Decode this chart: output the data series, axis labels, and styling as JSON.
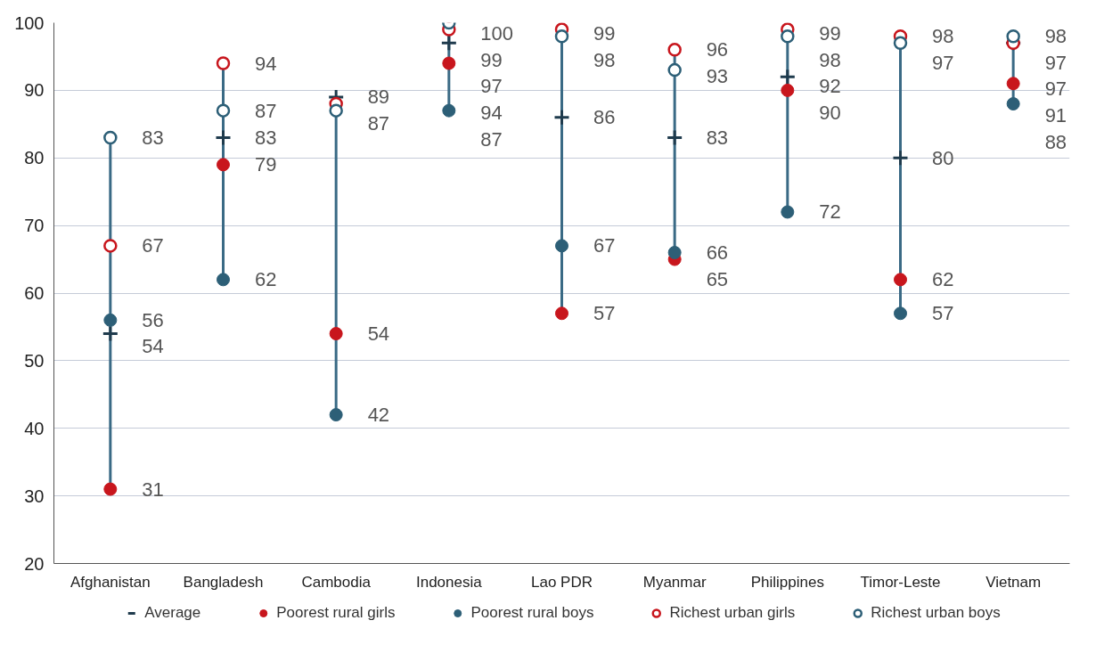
{
  "chart_data": {
    "type": "scatter",
    "categories": [
      "Afghanistan",
      "Bangladesh",
      "Cambodia",
      "Indonesia",
      "Lao PDR",
      "Myanmar",
      "Philippines",
      "Timor-Leste",
      "Vietnam"
    ],
    "ylim": [
      20,
      100
    ],
    "yticks": [
      20,
      30,
      40,
      50,
      60,
      70,
      80,
      90,
      100
    ],
    "grid": "y",
    "legend": "bottom",
    "series": [
      {
        "name": "Average",
        "color": "#1f3b4d",
        "marker": "cross",
        "values": [
          54,
          83,
          89,
          97,
          86,
          83,
          92,
          80,
          97
        ]
      },
      {
        "name": "Poorest rural girls",
        "color": "#c8161d",
        "marker": "circle",
        "values": [
          31,
          79,
          54,
          94,
          57,
          65,
          90,
          62,
          91
        ]
      },
      {
        "name": "Poorest rural boys",
        "color": "#2d5f77",
        "marker": "circle",
        "values": [
          56,
          62,
          42,
          87,
          67,
          66,
          72,
          57,
          88
        ]
      },
      {
        "name": "Richest urban girls",
        "color": "#c8161d",
        "marker": "circle_open",
        "values": [
          67,
          94,
          88,
          99,
          99,
          96,
          99,
          98,
          97
        ],
        "value_labels": [
          "67",
          "94",
          null,
          "99",
          "99",
          "96",
          "99",
          "98",
          "97"
        ]
      },
      {
        "name": "Richest urban boys",
        "color": "#2d5f77",
        "marker": "circle_open",
        "values": [
          83,
          87,
          87,
          100,
          98,
          93,
          98,
          97,
          98
        ]
      }
    ],
    "data_labels": true
  }
}
